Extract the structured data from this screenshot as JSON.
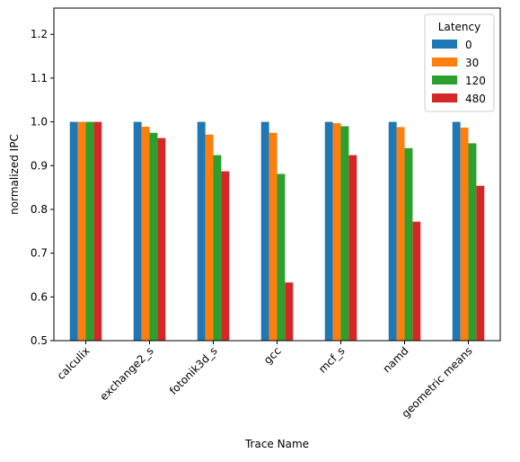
{
  "chart_data": {
    "type": "bar",
    "title": "",
    "xlabel": "Trace Name",
    "ylabel": "normalized IPC",
    "ylim": [
      0.5,
      1.26
    ],
    "yticks": [
      "0.5",
      "0.6",
      "0.7",
      "0.8",
      "0.9",
      "1.0",
      "1.1",
      "1.2"
    ],
    "ytick_values": [
      0.5,
      0.6,
      0.7,
      0.8,
      0.9,
      1.0,
      1.1,
      1.2
    ],
    "grid": false,
    "legend": {
      "title": "Latency",
      "placement": "top-right"
    },
    "categories": [
      "calculix",
      "exchange2_s",
      "fotonik3d_s",
      "gcc",
      "mcf_s",
      "namd",
      "geometric means"
    ],
    "series": [
      {
        "name": "0",
        "color": "#1f77b4",
        "values": [
          1.0,
          1.0,
          1.0,
          1.0,
          1.0,
          1.0,
          1.0
        ]
      },
      {
        "name": "30",
        "color": "#ff7f0e",
        "values": [
          1.0,
          0.989,
          0.971,
          0.975,
          0.997,
          0.988,
          0.987
        ]
      },
      {
        "name": "120",
        "color": "#2ca02c",
        "values": [
          1.0,
          0.975,
          0.924,
          0.881,
          0.99,
          0.94,
          0.951
        ]
      },
      {
        "name": "480",
        "color": "#d62728",
        "values": [
          1.0,
          0.963,
          0.887,
          0.633,
          0.924,
          0.772,
          0.854
        ]
      }
    ]
  }
}
